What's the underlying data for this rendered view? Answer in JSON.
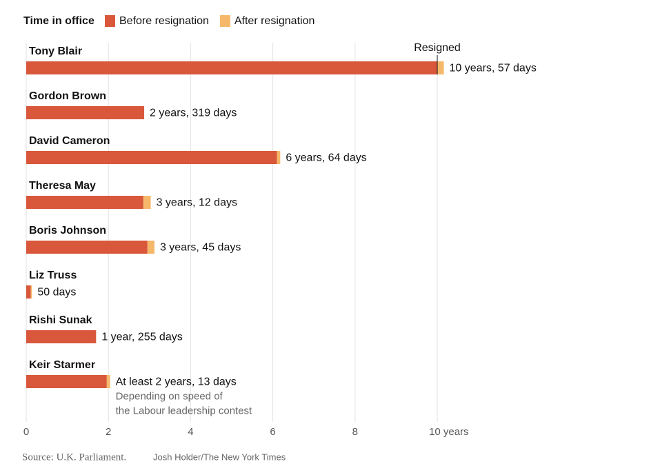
{
  "chart_data": {
    "type": "stacked-bar-horizontal",
    "legend_title": "Time in office",
    "categories": [
      "Tony Blair",
      "Gordon Brown",
      "David Cameron",
      "Theresa May",
      "Boris Johnson",
      "Liz Truss",
      "Rishi Sunak",
      "Keir Starmer"
    ],
    "series": [
      {
        "name": "Before resignation",
        "color": "#d9573b",
        "values": [
          10.0,
          2.87,
          6.1,
          2.85,
          2.95,
          0.11,
          1.7,
          1.96
        ]
      },
      {
        "name": "After resignation",
        "color": "#f5b86a",
        "values": [
          0.16,
          0,
          0.08,
          0.18,
          0.17,
          0.03,
          0,
          0.08
        ]
      }
    ],
    "bar_labels": [
      "10 years, 57 days",
      "2 years, 319 days",
      "6 years, 64 days",
      "3 years, 12 days",
      "3 years, 45 days",
      "50 days",
      "1 year, 255 days",
      "At least 2 years, 13 days"
    ],
    "annotations": {
      "resigned": "Resigned",
      "starmer_note": [
        "Depending on speed of",
        "the Labour leadership contest"
      ]
    },
    "xlim": [
      0,
      10
    ],
    "xticks": [
      0,
      2,
      4,
      6,
      8,
      {
        "value": 10,
        "label": "10 years"
      }
    ],
    "grid": true,
    "source": "Source: U.K. Parliament.",
    "credit": "Josh Holder/The New York Times"
  }
}
